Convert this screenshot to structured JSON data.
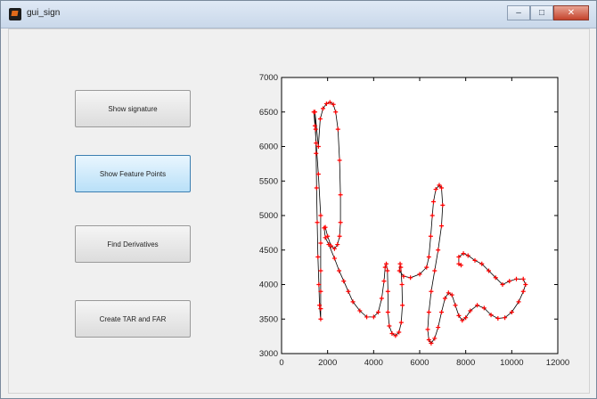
{
  "window": {
    "title": "gui_sign",
    "minimize": "–",
    "maximize": "□",
    "close": "✕"
  },
  "buttons": {
    "show_signature": "Show signature",
    "show_feature_points": "Show Feature Points",
    "find_derivatives": "Find Derivatives",
    "create_tar_far": "Create TAR and FAR"
  },
  "chart_data": {
    "type": "line",
    "title": "",
    "xlabel": "",
    "ylabel": "",
    "xlim": [
      0,
      12000
    ],
    "ylim": [
      3000,
      7000
    ],
    "x_ticks": [
      0,
      2000,
      4000,
      6000,
      8000,
      10000,
      12000
    ],
    "y_ticks": [
      3000,
      3500,
      4000,
      4500,
      5000,
      5500,
      6000,
      6500,
      7000
    ],
    "grid": false,
    "series": [
      {
        "line_color": "#000000",
        "marker_color": "#ff0000",
        "marker": "+",
        "points": [
          [
            1400,
            6500
          ],
          [
            1450,
            6300
          ],
          [
            1500,
            6050
          ],
          [
            1600,
            5600
          ],
          [
            1700,
            5000
          ],
          [
            1700,
            4600
          ],
          [
            1700,
            4200
          ],
          [
            1700,
            3900
          ],
          [
            1700,
            3650
          ],
          [
            1700,
            3500
          ],
          [
            1650,
            3700
          ],
          [
            1620,
            4000
          ],
          [
            1580,
            4400
          ],
          [
            1550,
            4900
          ],
          [
            1520,
            5400
          ],
          [
            1500,
            5900
          ],
          [
            1480,
            6250
          ],
          [
            1450,
            6500
          ],
          [
            1600,
            6000
          ],
          [
            1680,
            6400
          ],
          [
            1800,
            6550
          ],
          [
            1950,
            6620
          ],
          [
            2100,
            6640
          ],
          [
            2250,
            6610
          ],
          [
            2350,
            6500
          ],
          [
            2450,
            6250
          ],
          [
            2520,
            5800
          ],
          [
            2560,
            5300
          ],
          [
            2560,
            4900
          ],
          [
            2520,
            4700
          ],
          [
            2430,
            4580
          ],
          [
            2300,
            4520
          ],
          [
            2150,
            4560
          ],
          [
            2000,
            4700
          ],
          [
            1900,
            4830
          ],
          [
            1850,
            4820
          ],
          [
            1900,
            4680
          ],
          [
            2050,
            4580
          ],
          [
            2300,
            4380
          ],
          [
            2500,
            4200
          ],
          [
            2700,
            4050
          ],
          [
            2900,
            3900
          ],
          [
            3100,
            3750
          ],
          [
            3400,
            3620
          ],
          [
            3700,
            3530
          ],
          [
            4000,
            3530
          ],
          [
            4200,
            3600
          ],
          [
            4350,
            3800
          ],
          [
            4450,
            4050
          ],
          [
            4500,
            4250
          ],
          [
            4550,
            4300
          ],
          [
            4600,
            4200
          ],
          [
            4620,
            3900
          ],
          [
            4620,
            3600
          ],
          [
            4680,
            3400
          ],
          [
            4800,
            3290
          ],
          [
            4950,
            3260
          ],
          [
            5100,
            3310
          ],
          [
            5200,
            3450
          ],
          [
            5250,
            3700
          ],
          [
            5230,
            4000
          ],
          [
            5180,
            4250
          ],
          [
            5150,
            4300
          ],
          [
            5120,
            4200
          ],
          [
            5300,
            4120
          ],
          [
            5600,
            4100
          ],
          [
            6000,
            4150
          ],
          [
            6300,
            4250
          ],
          [
            6400,
            4400
          ],
          [
            6480,
            4700
          ],
          [
            6550,
            5000
          ],
          [
            6600,
            5200
          ],
          [
            6700,
            5380
          ],
          [
            6850,
            5440
          ],
          [
            6950,
            5400
          ],
          [
            7000,
            5150
          ],
          [
            6950,
            4850
          ],
          [
            6800,
            4500
          ],
          [
            6650,
            4200
          ],
          [
            6500,
            3900
          ],
          [
            6400,
            3600
          ],
          [
            6350,
            3350
          ],
          [
            6400,
            3200
          ],
          [
            6500,
            3150
          ],
          [
            6650,
            3220
          ],
          [
            6800,
            3380
          ],
          [
            6950,
            3600
          ],
          [
            7100,
            3800
          ],
          [
            7250,
            3880
          ],
          [
            7400,
            3850
          ],
          [
            7550,
            3700
          ],
          [
            7700,
            3550
          ],
          [
            7850,
            3480
          ],
          [
            8000,
            3520
          ],
          [
            8200,
            3620
          ],
          [
            8500,
            3700
          ],
          [
            8800,
            3660
          ],
          [
            9100,
            3560
          ],
          [
            9400,
            3510
          ],
          [
            9700,
            3520
          ],
          [
            10000,
            3600
          ],
          [
            10300,
            3750
          ],
          [
            10500,
            3900
          ],
          [
            10600,
            4000
          ],
          [
            10500,
            4080
          ],
          [
            10200,
            4080
          ],
          [
            9900,
            4050
          ],
          [
            9600,
            4000
          ],
          [
            9300,
            4100
          ],
          [
            9000,
            4200
          ],
          [
            8700,
            4300
          ],
          [
            8400,
            4350
          ],
          [
            8100,
            4420
          ],
          [
            7900,
            4450
          ],
          [
            7700,
            4400
          ],
          [
            7700,
            4300
          ],
          [
            7800,
            4280
          ]
        ]
      }
    ]
  }
}
